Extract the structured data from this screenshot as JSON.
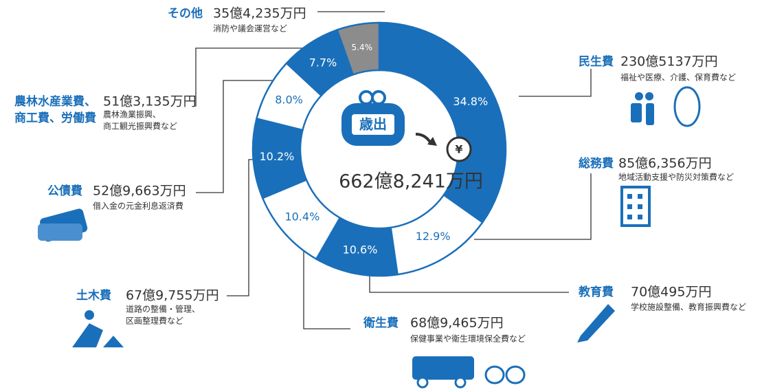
{
  "chart_data": {
    "type": "donut",
    "center_label": "歳出",
    "center_symbol": "¥",
    "total": "662億8,241万円",
    "categories": [
      [
        "民生費"
      ],
      [
        "総務費"
      ],
      [
        "教育費"
      ],
      [
        "衛生費"
      ],
      [
        "土木費"
      ],
      [
        "公債費"
      ],
      [
        "農林水産業費、",
        "商工費、労働費"
      ],
      [
        "その他"
      ]
    ],
    "amounts": [
      "230億5137万円",
      "85億6,356万円",
      "70億495万円",
      "68億9,465万円",
      "67億9,755万円",
      "52億9,663万円",
      "51億3,135万円",
      "35億4,235万円"
    ],
    "descriptions": [
      [
        "福祉や医療、介護、保育費など"
      ],
      [
        "地域活動支援や防災対策費など"
      ],
      [
        "学校施設整備、教育振興費など"
      ],
      [
        "保健事業や衛生環境保全費など"
      ],
      [
        "道路の整備・管理、",
        "区画整理費など"
      ],
      [
        "借入金の元金利息返済費"
      ],
      [
        "農林漁業振興、",
        "商工観光振興費など"
      ],
      [
        "消防や議会運営など"
      ]
    ],
    "values": [
      34.8,
      12.9,
      10.6,
      10.4,
      10.2,
      8.0,
      7.7,
      5.4
    ],
    "value_labels": [
      "34.8%",
      "12.9%",
      "10.6%",
      "10.4%",
      "10.2%",
      "8.0%",
      "7.7%",
      "5.4%"
    ],
    "colors": [
      "#1a6fba",
      "#ffffff",
      "#1a6fba",
      "#ffffff",
      "#1a6fba",
      "#ffffff",
      "#1a6fba",
      "#8c8c8c"
    ]
  }
}
